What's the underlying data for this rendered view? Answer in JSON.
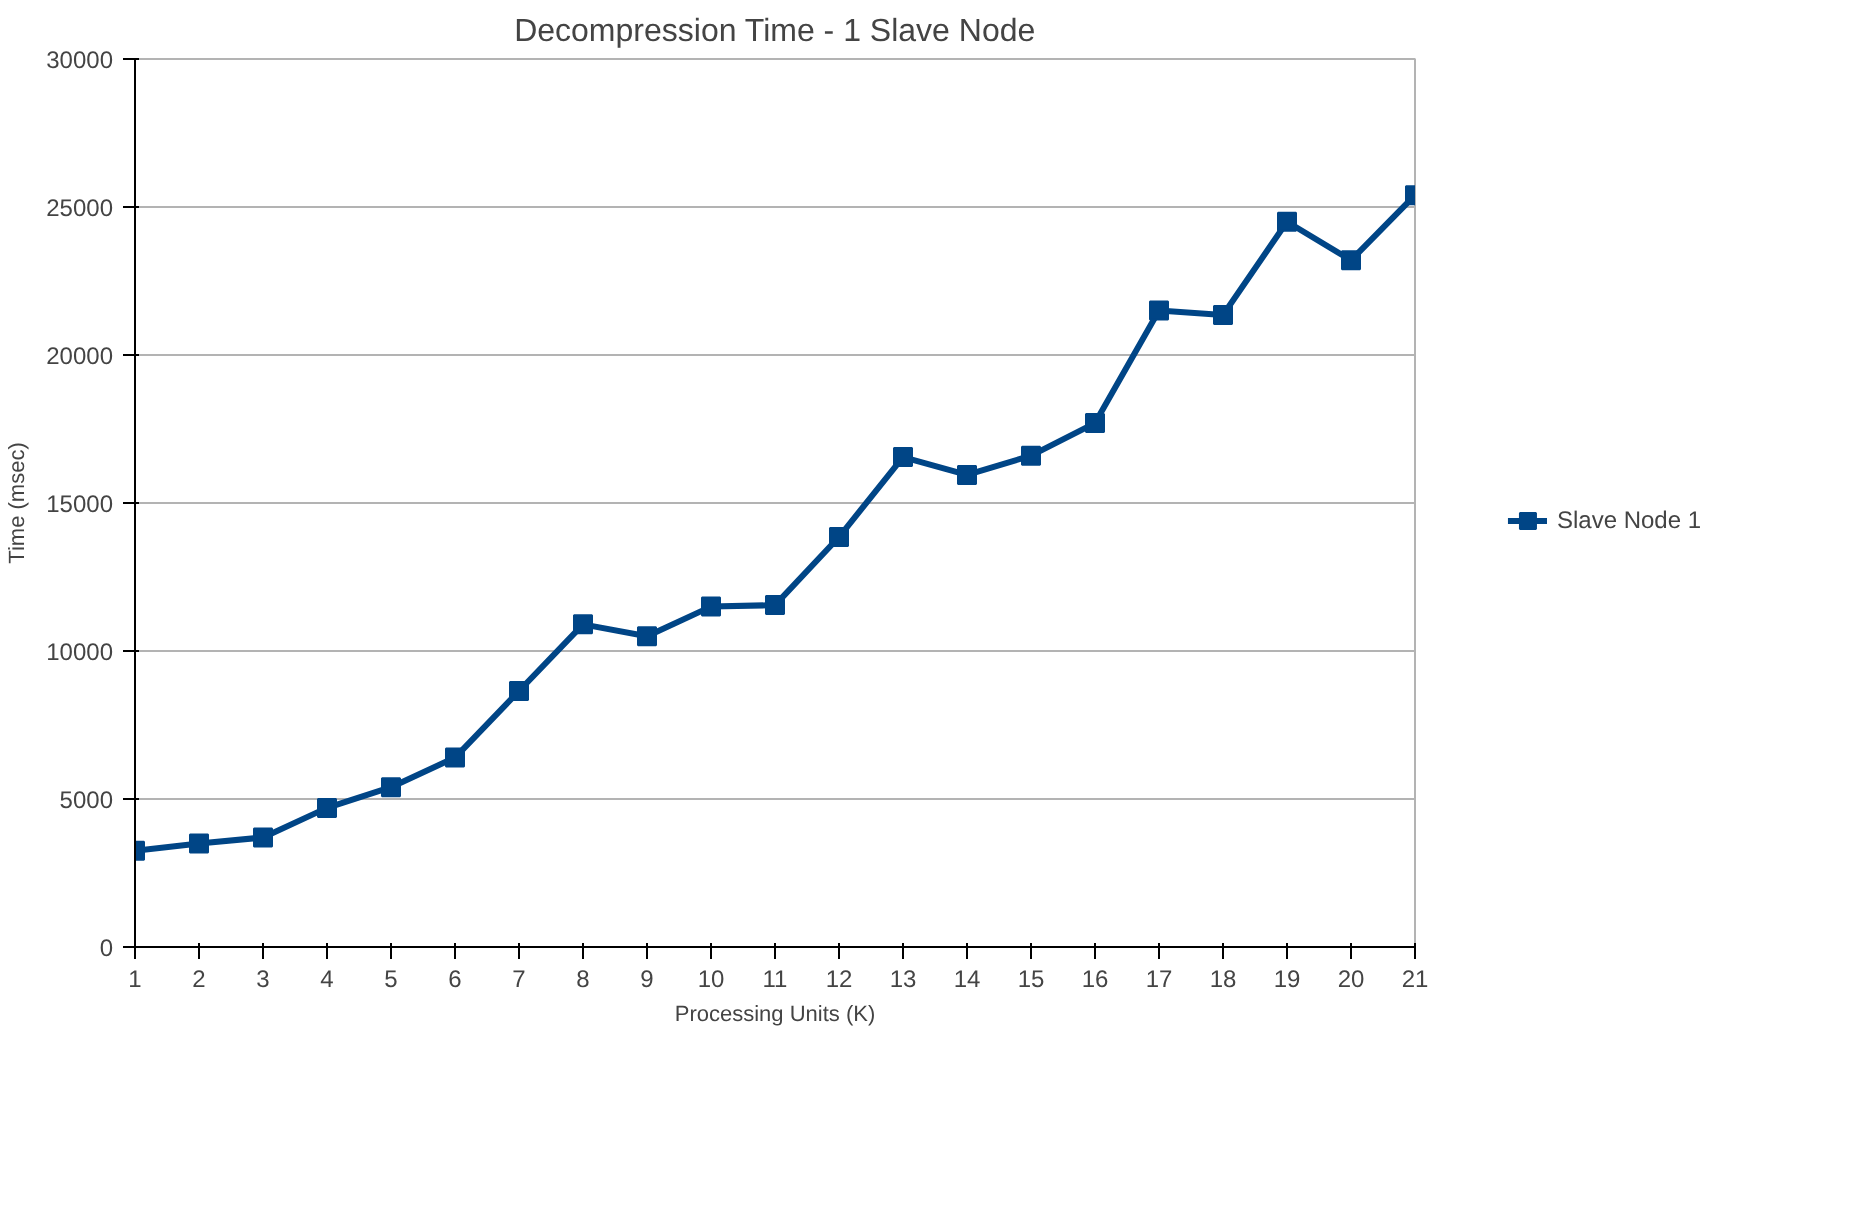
{
  "chart_data": {
    "type": "line",
    "title": "Decompression Time - 1 Slave Node",
    "xlabel": "Processing Units (K)",
    "ylabel": "Time (msec)",
    "x": [
      1,
      2,
      3,
      4,
      5,
      6,
      7,
      8,
      9,
      10,
      11,
      12,
      13,
      14,
      15,
      16,
      17,
      18,
      19,
      20,
      21
    ],
    "series": [
      {
        "name": "Slave Node 1",
        "color": "#004586",
        "values": [
          3250,
          3500,
          3700,
          4700,
          5400,
          6400,
          8650,
          10900,
          10500,
          11500,
          11550,
          13850,
          16550,
          15950,
          16600,
          17700,
          21500,
          21350,
          24500,
          23200,
          25400
        ]
      }
    ],
    "xlim": [
      1,
      21
    ],
    "xticks": [
      1,
      2,
      3,
      4,
      5,
      6,
      7,
      8,
      9,
      10,
      11,
      12,
      13,
      14,
      15,
      16,
      17,
      18,
      19,
      20,
      21
    ],
    "ylim": [
      0,
      30000
    ],
    "yticks": [
      0,
      5000,
      10000,
      15000,
      20000,
      25000,
      30000
    ],
    "grid": "y",
    "legend": "right",
    "marker": "square",
    "line_style": "solid"
  }
}
